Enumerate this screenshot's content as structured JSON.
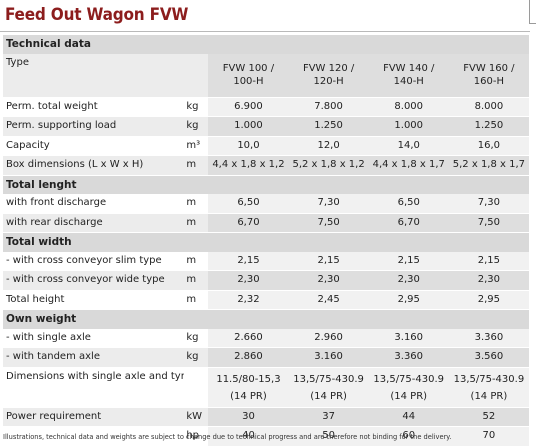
{
  "title": "Feed Out Wagon FVW",
  "sections": {
    "technical_data": "Technical data",
    "total_lenght": "Total lenght",
    "total_width": "Total width",
    "own_weight": "Own weight"
  },
  "header": {
    "label": "Type",
    "models": [
      {
        "line1": "FVW 100 /",
        "line2": "100-H"
      },
      {
        "line1": "FVW 120 /",
        "line2": "120-H"
      },
      {
        "line1": "FVW 140 /",
        "line2": "140-H"
      },
      {
        "line1": "FVW 160 /",
        "line2": "160-H"
      }
    ]
  },
  "rows": {
    "perm_total_weight": {
      "label": "Perm. total weight",
      "unit": "kg",
      "values": [
        "6.900",
        "7.800",
        "8.000",
        "8.000"
      ]
    },
    "perm_supporting_load": {
      "label": "Perm. supporting load",
      "unit": "kg",
      "values": [
        "1.000",
        "1.250",
        "1.000",
        "1.250"
      ]
    },
    "capacity": {
      "label": "Capacity",
      "unit": "m³",
      "values": [
        "10,0",
        "12,0",
        "14,0",
        "16,0"
      ]
    },
    "box_dimensions": {
      "label": "Box dimensions (L x W x H)",
      "unit": "m",
      "values": [
        "4,4 x 1,8 x 1,2",
        "5,2 x 1,8 x 1,2",
        "4,4 x 1,8 x 1,7",
        "5,2 x 1,8 x 1,7"
      ]
    },
    "front_discharge": {
      "label": "with front discharge",
      "unit": "m",
      "values": [
        "6,50",
        "7,30",
        "6,50",
        "7,30"
      ]
    },
    "rear_discharge": {
      "label": "with rear discharge",
      "unit": "m",
      "values": [
        "6,70",
        "7,50",
        "6,70",
        "7,50"
      ]
    },
    "slim_conveyor": {
      "label": "- with cross conveyor slim type",
      "unit": "m",
      "values": [
        "2,15",
        "2,15",
        "2,15",
        "2,15"
      ]
    },
    "wide_conveyor": {
      "label": "- with cross conveyor wide type",
      "unit": "m",
      "values": [
        "2,30",
        "2,30",
        "2,30",
        "2,30"
      ]
    },
    "total_height": {
      "label": "Total height",
      "unit": "m",
      "values": [
        "2,32",
        "2,45",
        "2,95",
        "2,95"
      ]
    },
    "single_axle": {
      "label": "- with single axle",
      "unit": "kg",
      "values": [
        "2.660",
        "2.960",
        "3.160",
        "3.360"
      ]
    },
    "tandem_axle": {
      "label": "- with tandem axle",
      "unit": "kg",
      "values": [
        "2.860",
        "3.160",
        "3.360",
        "3.560"
      ]
    },
    "dimensions_tyres": {
      "label": "Dimensions with single axle and tyres",
      "unit": "",
      "values": [
        {
          "line1": "11.5/80-15,3",
          "line2": "(14 PR)"
        },
        {
          "line1": "13,5/75-430.9",
          "line2": "(14 PR)"
        },
        {
          "line1": "13,5/75-430.9",
          "line2": "(14 PR)"
        },
        {
          "line1": "13,5/75-430.9",
          "line2": "(14 PR)"
        }
      ]
    },
    "power_kw": {
      "label": "Power requirement",
      "unit": "kW",
      "values": [
        "30",
        "37",
        "44",
        "52"
      ]
    },
    "power_hp": {
      "label": "",
      "unit": "hp",
      "values": [
        "40",
        "50",
        "60",
        "70"
      ]
    }
  },
  "footnote": "Illustrations, technical data and weights are subject to change due to technical progress and are therefore not binding for the delivery."
}
